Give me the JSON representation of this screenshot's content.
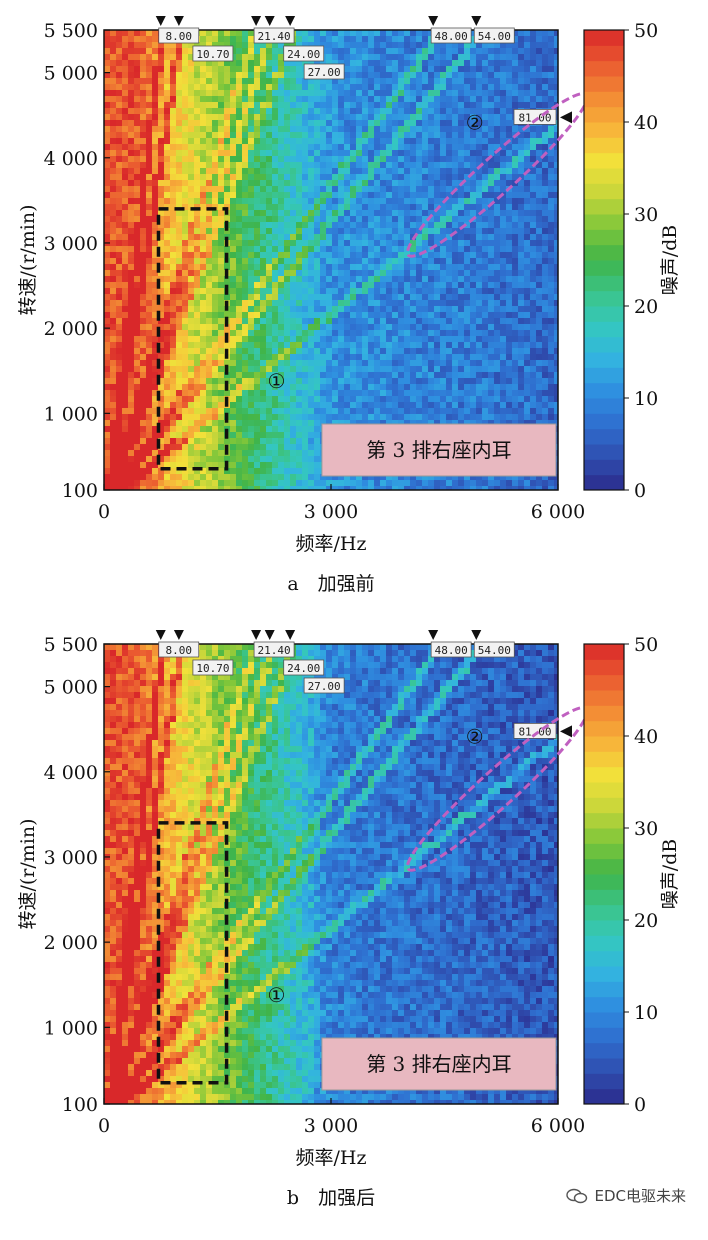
{
  "chart_data": [
    {
      "type": "heatmap",
      "caption": "a　加强前",
      "xlabel": "频率/Hz",
      "ylabel": "转速/(r/min)",
      "colorbar_label": "噪声/dB",
      "xlim": [
        0,
        6000
      ],
      "ylim": [
        100,
        5500
      ],
      "x_ticks": [
        "0",
        "3 000",
        "6 000"
      ],
      "y_ticks": [
        {
          "label": "100",
          "value": 100
        },
        {
          "label": "1 000",
          "value": 1000
        },
        {
          "label": "2 000",
          "value": 2000
        },
        {
          "label": "3 000",
          "value": 3000
        },
        {
          "label": "4 000",
          "value": 4000
        },
        {
          "label": "5 000",
          "value": 5000
        },
        {
          "label": "5 500",
          "value": 5500
        }
      ],
      "colorbar_ticks": [
        "0",
        "10",
        "20",
        "30",
        "40",
        "50"
      ],
      "colorbar_range": [
        0,
        50
      ],
      "order_markers": [
        "8.00",
        "10.70",
        "21.40",
        "24.00",
        "27.00",
        "48.00",
        "54.00",
        "81.00"
      ],
      "annotations": {
        "circle1": "①",
        "circle2": "②",
        "box_label": "第 3 排右座内耳"
      },
      "dashed_box": {
        "x": [
          720,
          1620
        ],
        "rpm": [
          350,
          3400
        ]
      }
    },
    {
      "type": "heatmap",
      "caption": "b　加强后",
      "xlabel": "频率/Hz",
      "ylabel": "转速/(r/min)",
      "colorbar_label": "噪声/dB",
      "xlim": [
        0,
        6000
      ],
      "ylim": [
        100,
        5500
      ],
      "x_ticks": [
        "0",
        "3 000",
        "6 000"
      ],
      "y_ticks": [
        {
          "label": "100",
          "value": 100
        },
        {
          "label": "1 000",
          "value": 1000
        },
        {
          "label": "2 000",
          "value": 2000
        },
        {
          "label": "3 000",
          "value": 3000
        },
        {
          "label": "4 000",
          "value": 4000
        },
        {
          "label": "5 000",
          "value": 5000
        },
        {
          "label": "5 500",
          "value": 5500
        }
      ],
      "colorbar_ticks": [
        "0",
        "10",
        "20",
        "30",
        "40",
        "50"
      ],
      "colorbar_range": [
        0,
        50
      ],
      "order_markers": [
        "8.00",
        "10.70",
        "21.40",
        "24.00",
        "27.00",
        "48.00",
        "54.00",
        "81.00"
      ],
      "annotations": {
        "circle1": "①",
        "circle2": "②",
        "box_label": "第 3 排右座内耳"
      },
      "dashed_box": {
        "x": [
          720,
          1620
        ],
        "rpm": [
          350,
          3400
        ]
      }
    }
  ],
  "watermark": "EDC电驱未来",
  "colors": {
    "colormap": [
      "#2b2a8c",
      "#2f4fb0",
      "#2f6fcf",
      "#2f8fe0",
      "#33b3e0",
      "#34c7c0",
      "#3bc48a",
      "#3fb44a",
      "#7fc63a",
      "#c8d63a",
      "#f2e13a",
      "#f7b43a",
      "#f28a34",
      "#ea5a30",
      "#d9282a"
    ],
    "annotation_magenta": "#c060c0",
    "annotation_box_fill": "#e8b8c0"
  }
}
